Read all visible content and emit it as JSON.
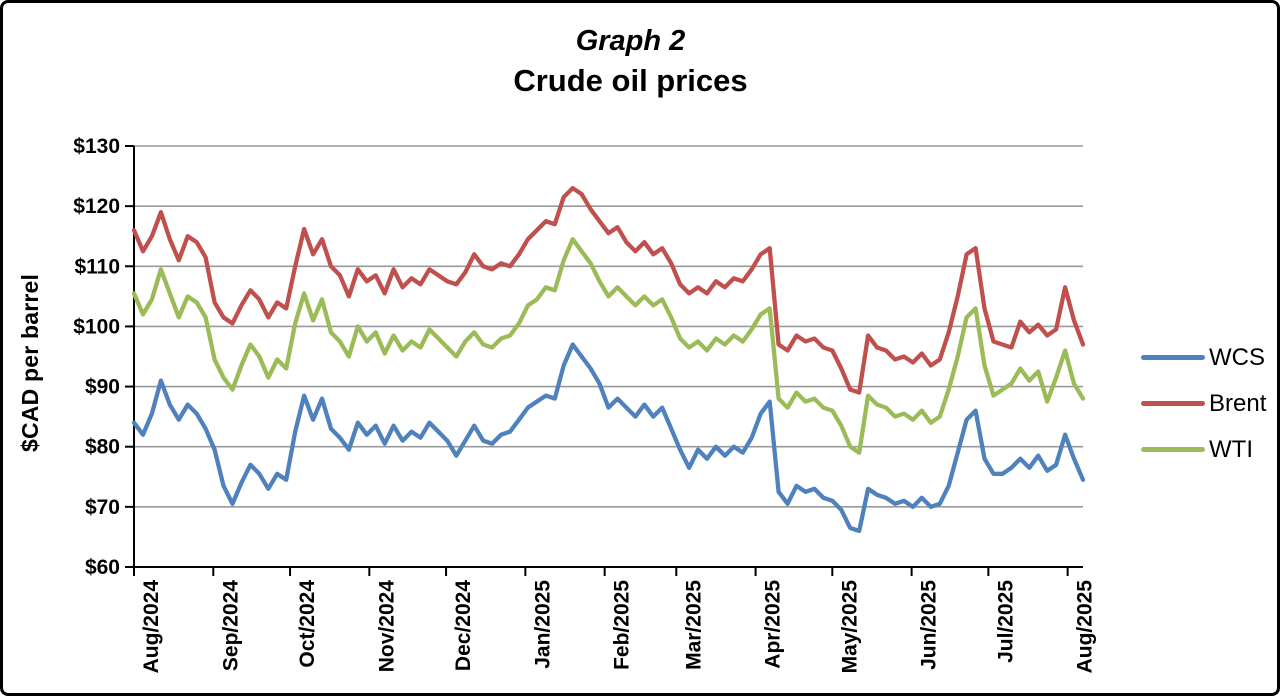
{
  "title": {
    "line1": "Graph 2",
    "line2": "Crude oil prices"
  },
  "chart_data": {
    "type": "line",
    "title": "Graph 2",
    "subtitle": "Crude oil prices",
    "ylabel": "$CAD per barrel",
    "grid": "horizontal",
    "legend_position": "right",
    "y_axis": {
      "min": 60,
      "max": 130,
      "tick_step": 10,
      "tick_labels": [
        "$130",
        "$120",
        "$110",
        "$100",
        "$90",
        "$80",
        "$70",
        "$60"
      ]
    },
    "x_axis": {
      "tick_labels": [
        "Aug/2024",
        "Sep/2024",
        "Oct/2024",
        "Nov/2024",
        "Dec/2024",
        "Jan/2025",
        "Feb/2025",
        "Mar/2025",
        "Apr/2025",
        "May/2025",
        "Jun/2025",
        "Jul/2025",
        "Aug/2025"
      ],
      "tick_days": [
        0,
        31,
        61,
        92,
        122,
        153,
        184,
        212,
        243,
        273,
        304,
        334,
        365
      ],
      "total_days": 371
    },
    "sampling": {
      "interval_days": 3.5,
      "start": "Aug/2024",
      "end": "Aug/2025"
    },
    "series": [
      {
        "name": "WCS",
        "color": "#4F81BD",
        "values": [
          84,
          82,
          85.5,
          91,
          87,
          84.5,
          87,
          85.5,
          83,
          79.5,
          73.5,
          70.5,
          74,
          77,
          75.5,
          73,
          75.5,
          74.5,
          82.5,
          88.5,
          84.5,
          88,
          83,
          81.5,
          79.5,
          84,
          82,
          83.5,
          80.5,
          83.5,
          81,
          82.5,
          81.5,
          84,
          82.5,
          81,
          78.5,
          81,
          83.5,
          81,
          80.5,
          82,
          82.5,
          84.5,
          86.5,
          87.5,
          88.5,
          88,
          93.5,
          97,
          95,
          93,
          90.5,
          86.5,
          88,
          86.5,
          85,
          87,
          85,
          86.5,
          83,
          79.5,
          76.5,
          79.5,
          78,
          80,
          78.5,
          80,
          79,
          81.5,
          85.5,
          87.5,
          72.5,
          70.5,
          73.5,
          72.5,
          73,
          71.5,
          71,
          69.5,
          66.5,
          66,
          73,
          72,
          71.5,
          70.5,
          71,
          70,
          71.5,
          70,
          70.5,
          73.5,
          79,
          84.5,
          86,
          78,
          75.5,
          75.5,
          76.5,
          78,
          76.5,
          78.5,
          76,
          77,
          82,
          78,
          74.5
        ]
      },
      {
        "name": "Brent",
        "color": "#C0504D",
        "values": [
          116,
          112.5,
          115,
          119,
          114.5,
          111,
          115,
          114,
          111.5,
          104,
          101.5,
          100.5,
          103.5,
          106,
          104.5,
          101.5,
          104,
          103,
          110,
          116.2,
          112,
          114.5,
          110,
          108.5,
          105,
          109.5,
          107.5,
          108.5,
          105.5,
          109.5,
          106.5,
          108,
          107,
          109.5,
          108.5,
          107.5,
          107,
          109,
          112,
          110,
          109.5,
          110.5,
          110,
          112,
          114.5,
          116,
          117.5,
          117,
          121.5,
          123,
          122,
          119.5,
          117.5,
          115.5,
          116.5,
          114,
          112.5,
          114,
          112,
          113,
          110.5,
          107,
          105.5,
          106.5,
          105.5,
          107.5,
          106.5,
          108,
          107.5,
          109.5,
          112,
          113,
          97,
          96,
          98.5,
          97.5,
          98,
          96.5,
          96,
          93,
          89.5,
          89,
          98.5,
          96.5,
          96,
          94.5,
          95,
          94,
          95.5,
          93.5,
          94.5,
          99,
          105,
          112,
          113,
          103,
          97.5,
          97,
          96.5,
          100.8,
          99,
          100.3,
          98.5,
          99.5,
          106.5,
          101,
          97
        ]
      },
      {
        "name": "WTI",
        "color": "#9BBB59",
        "values": [
          105.5,
          102,
          104.5,
          109.5,
          105.5,
          101.5,
          105,
          104,
          101.5,
          94.5,
          91.5,
          89.5,
          93.5,
          97,
          95,
          91.5,
          94.5,
          93,
          100.5,
          105.5,
          101,
          104.5,
          99,
          97.5,
          95,
          100,
          97.5,
          99,
          95.5,
          98.5,
          96,
          97.5,
          96.5,
          99.5,
          98,
          96.5,
          95,
          97.5,
          99,
          97,
          96.5,
          98,
          98.5,
          100.5,
          103.5,
          104.5,
          106.5,
          106,
          111,
          114.5,
          112.5,
          110.5,
          107.5,
          105,
          106.5,
          105,
          103.5,
          105,
          103.5,
          104.5,
          101.5,
          98,
          96.5,
          97.5,
          96,
          98,
          97,
          98.5,
          97.5,
          99.5,
          102,
          103,
          88,
          86.5,
          89,
          87.5,
          88,
          86.5,
          86,
          83.5,
          80,
          79,
          88.5,
          87,
          86.5,
          85,
          85.5,
          84.5,
          86,
          84,
          85,
          89.5,
          95,
          101.5,
          103,
          93.5,
          88.5,
          89.5,
          90.5,
          93,
          91,
          92.5,
          87.5,
          91.5,
          96,
          90.5,
          88
        ]
      }
    ],
    "style": {
      "gridline_color": "#9a9a9a",
      "axis_color": "#000000",
      "line_width": 4.3
    }
  }
}
